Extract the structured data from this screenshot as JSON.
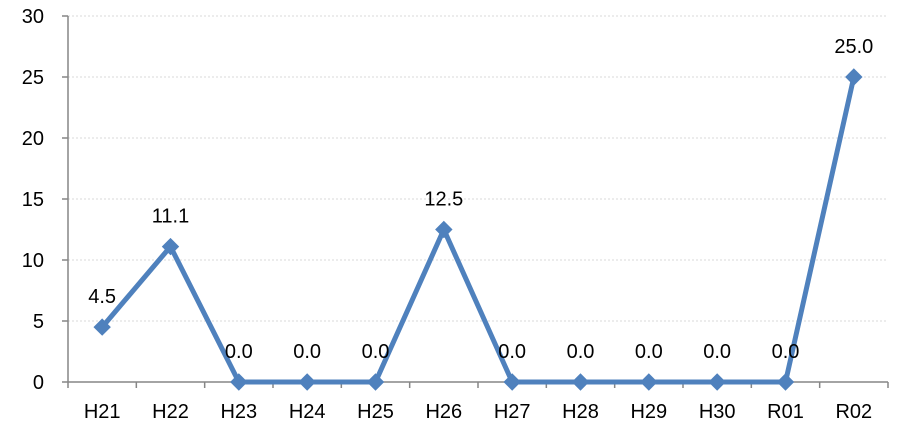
{
  "chart_data": {
    "type": "line",
    "title": "",
    "xlabel": "",
    "ylabel": "",
    "categories": [
      "H21",
      "H22",
      "H23",
      "H24",
      "H25",
      "H26",
      "H27",
      "H28",
      "H29",
      "H30",
      "R01",
      "R02"
    ],
    "series": [
      {
        "values": [
          4.5,
          11.1,
          0.0,
          0.0,
          0.0,
          12.5,
          0.0,
          0.0,
          0.0,
          0.0,
          0.0,
          25.0
        ],
        "labels": [
          "4.5",
          "11.1",
          "0.0",
          "0.0",
          "0.0",
          "12.5",
          "0.0",
          "0.0",
          "0.0",
          "0.0",
          "0.0",
          "25.0"
        ],
        "color": "#4f81bd",
        "marker": "diamond"
      }
    ],
    "ylim": [
      0,
      30
    ],
    "yticks": [
      0,
      5,
      10,
      15,
      20,
      25,
      30
    ],
    "grid": true,
    "legend": "none"
  }
}
